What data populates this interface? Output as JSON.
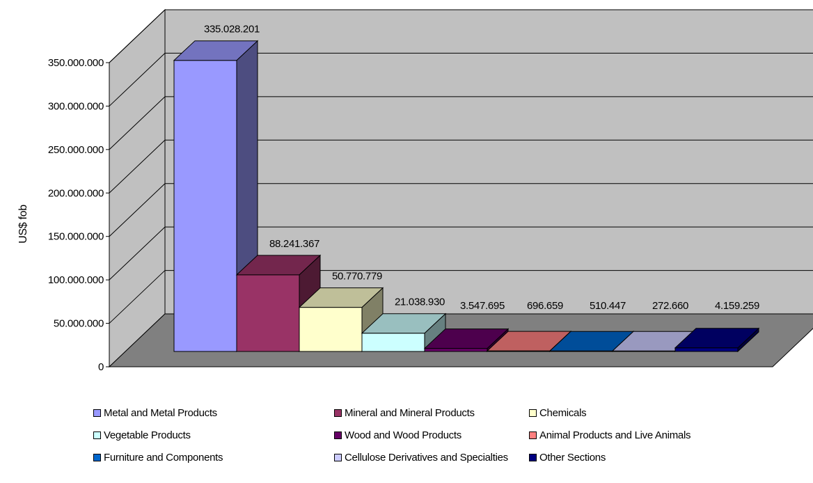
{
  "chart_data": {
    "type": "bar",
    "three_d": true,
    "categories": [
      "Metal and Metal Products",
      "Mineral and Mineral Products",
      "Chemicals",
      "Vegetable Products",
      "Wood and Wood Products",
      "Animal Products and Live Animals",
      "Furniture and Components",
      "Cellulose Derivatives and Specialties",
      "Other Sections"
    ],
    "values": [
      335028201,
      88241367,
      50770779,
      21038930,
      3547695,
      696659,
      510447,
      272660,
      4159259
    ],
    "value_labels": [
      "335.028.201",
      "88.241.367",
      "50.770.779",
      "21.038.930",
      "3.547.695",
      "696.659",
      "510.447",
      "272.660",
      "4.159.259"
    ],
    "colors": [
      "#9999ff",
      "#993366",
      "#ffffcc",
      "#ccffff",
      "#660066",
      "#ff8080",
      "#0066cc",
      "#ccccff",
      "#000080"
    ],
    "ylabel": "US$ fob",
    "ylim": [
      0,
      350000000
    ],
    "yticks": [
      0,
      50000000,
      100000000,
      150000000,
      200000000,
      250000000,
      300000000,
      350000000
    ],
    "ytick_labels": [
      "0",
      "50.000.000",
      "100.000.000",
      "150.000.000",
      "200.000.000",
      "250.000.000",
      "300.000.000",
      "350.000.000"
    ],
    "grid": true,
    "legend_position": "bottom",
    "wall_color": "#c0c0c0",
    "floor_color": "#808080"
  },
  "legend": [
    {
      "label": "Metal and Metal Products",
      "color": "#9999ff"
    },
    {
      "label": "Mineral and Mineral Products",
      "color": "#993366"
    },
    {
      "label": "Chemicals",
      "color": "#ffffcc"
    },
    {
      "label": "Vegetable Products",
      "color": "#ccffff"
    },
    {
      "label": "Wood and Wood Products",
      "color": "#660066"
    },
    {
      "label": "Animal Products and Live Animals",
      "color": "#ff8080"
    },
    {
      "label": "Furniture and Components",
      "color": "#0066cc"
    },
    {
      "label": "Cellulose Derivatives and Specialties",
      "color": "#ccccff"
    },
    {
      "label": "Other Sections",
      "color": "#000080"
    }
  ]
}
